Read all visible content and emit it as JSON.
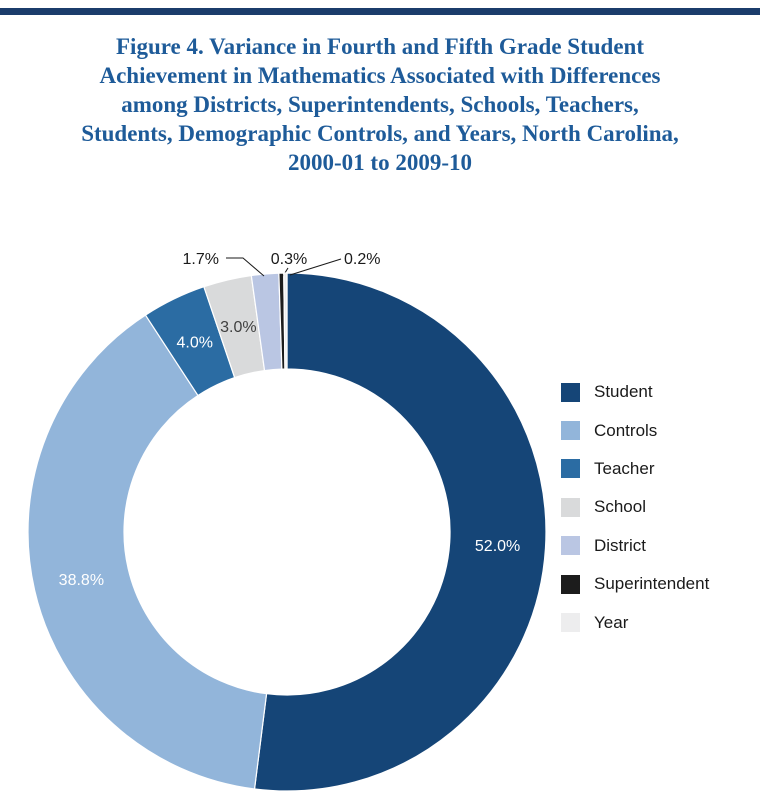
{
  "page": {
    "background": "#ffffff",
    "top_rule_color": "#1b3c6b"
  },
  "chart_data": {
    "type": "pie",
    "variant": "donut",
    "title": "Figure 4. Variance in Fourth and Fifth Grade Student Achievement in Mathematics Associated with Differences among Districts, Superintendents, Schools, Teachers, Students, Demographic Controls, and Years, North Carolina, 2000-01 to 2009-10",
    "title_lines": [
      "Figure 4. Variance in Fourth and Fifth Grade Student",
      "Achievement in Mathematics Associated with Differences",
      "among Districts, Superintendents, Schools, Teachers,",
      "Students, Demographic Controls, and Years, North Carolina,",
      "2000-01 to 2009-10"
    ],
    "title_color": "#1e5b99",
    "categories": [
      "Student",
      "Controls",
      "Teacher",
      "School",
      "District",
      "Superintendent",
      "Year"
    ],
    "values": [
      52.0,
      38.8,
      4.0,
      3.0,
      1.7,
      0.3,
      0.2
    ],
    "value_labels": [
      "52.0%",
      "38.8%",
      "4.0%",
      "3.0%",
      "1.7%",
      "0.3%",
      "0.2%"
    ],
    "colors": [
      "#154577",
      "#92b5da",
      "#2b6ca3",
      "#d9dadb",
      "#bac6e3",
      "#1c1c1c",
      "#ededee"
    ],
    "label_placement": [
      "inside",
      "inside",
      "inside",
      "inside",
      "outside",
      "outside",
      "outside"
    ],
    "label_text_colors": [
      "#ffffff",
      "#ffffff",
      "#ffffff",
      "#404040",
      "#1a1a1a",
      "#1a1a1a",
      "#1a1a1a"
    ],
    "start_angle": "top",
    "direction": "clockwise",
    "inner_radius_ratio": 0.63,
    "legend_position": "right",
    "total": 100.0
  }
}
